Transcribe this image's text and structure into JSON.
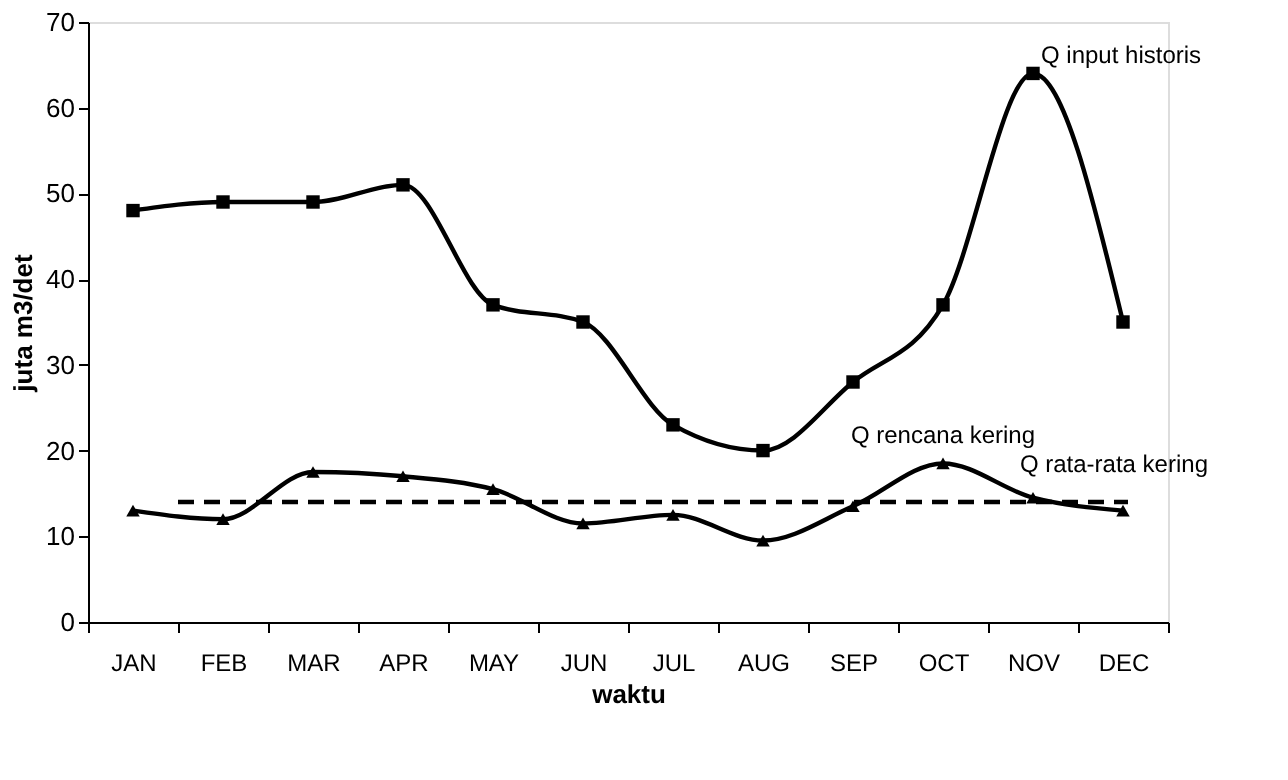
{
  "chart_data": {
    "type": "line",
    "xlabel": "waktu",
    "ylabel": "juta m3/det",
    "categories": [
      "JAN",
      "FEB",
      "MAR",
      "APR",
      "MAY",
      "JUN",
      "JUL",
      "AUG",
      "SEP",
      "OCT",
      "NOV",
      "DEC"
    ],
    "series": [
      {
        "name": "Q input historis",
        "color": "#000000",
        "marker": "square",
        "values": [
          48,
          49,
          49,
          51,
          37,
          35,
          23,
          20,
          28,
          37,
          64,
          35
        ]
      },
      {
        "name": "Q rencana kering",
        "color": "#000000",
        "marker": "triangle",
        "values": [
          13,
          12,
          17.5,
          17,
          15.5,
          11.5,
          12.5,
          9.5,
          13.5,
          18.5,
          14.5,
          13
        ]
      }
    ],
    "ref_lines": [
      {
        "axis": "y",
        "value": 14,
        "label": "Q rata-rata kering",
        "color": "#000000",
        "line_style": "dashed"
      }
    ],
    "ylim": [
      0,
      70
    ],
    "yticks": [
      0,
      10,
      20,
      30,
      40,
      50,
      60,
      70
    ],
    "grid": false,
    "line_style": "solid"
  }
}
